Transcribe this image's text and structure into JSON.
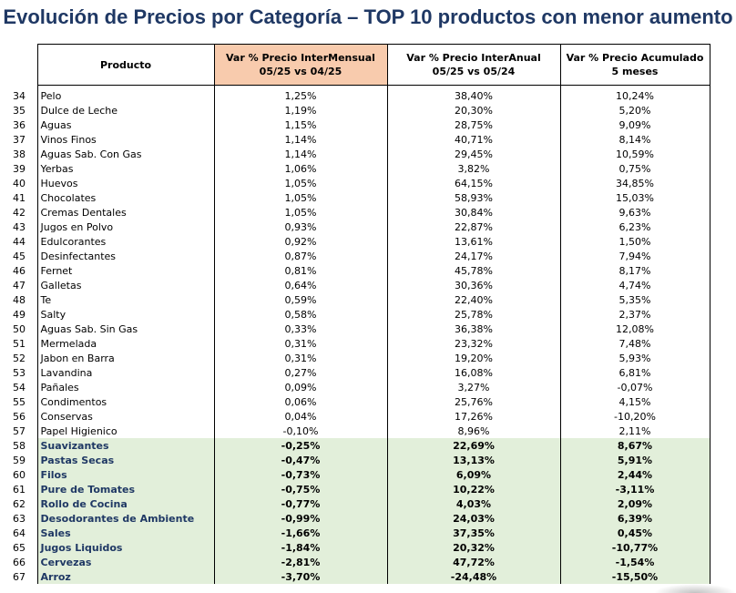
{
  "title": "Evolución de Precios por Categoría – TOP 10 productos con menor aumento",
  "headers": {
    "product": "Producto",
    "col1_line1": "Var % Precio InterMensual",
    "col1_line2": "05/25 vs 04/25",
    "col2_line1": "Var % Precio InterAnual",
    "col2_line2": "05/25 vs 05/24",
    "col3_line1": "Var % Precio Acumulado",
    "col3_line2": "5 meses"
  },
  "colors": {
    "title": "#1f3864",
    "header_highlight": "#f8cbad",
    "top10_highlight": "#e2efda"
  },
  "rows": [
    {
      "n": "34",
      "product": "Pelo",
      "mensual": "1,25%",
      "anual": "38,40%",
      "acum": "10,24%",
      "top": false
    },
    {
      "n": "35",
      "product": "Dulce de Leche",
      "mensual": "1,19%",
      "anual": "20,30%",
      "acum": "5,20%",
      "top": false
    },
    {
      "n": "36",
      "product": "Aguas",
      "mensual": "1,15%",
      "anual": "28,75%",
      "acum": "9,09%",
      "top": false
    },
    {
      "n": "37",
      "product": "Vinos Finos",
      "mensual": "1,14%",
      "anual": "40,71%",
      "acum": "8,14%",
      "top": false
    },
    {
      "n": "38",
      "product": "Aguas Sab. Con Gas",
      "mensual": "1,14%",
      "anual": "29,45%",
      "acum": "10,59%",
      "top": false
    },
    {
      "n": "39",
      "product": "Yerbas",
      "mensual": "1,06%",
      "anual": "3,82%",
      "acum": "0,75%",
      "top": false
    },
    {
      "n": "40",
      "product": "Huevos",
      "mensual": "1,05%",
      "anual": "64,15%",
      "acum": "34,85%",
      "top": false
    },
    {
      "n": "41",
      "product": "Chocolates",
      "mensual": "1,05%",
      "anual": "58,93%",
      "acum": "15,03%",
      "top": false
    },
    {
      "n": "42",
      "product": "Cremas Dentales",
      "mensual": "1,05%",
      "anual": "30,84%",
      "acum": "9,63%",
      "top": false
    },
    {
      "n": "43",
      "product": "Jugos en Polvo",
      "mensual": "0,93%",
      "anual": "22,87%",
      "acum": "6,23%",
      "top": false
    },
    {
      "n": "44",
      "product": "Edulcorantes",
      "mensual": "0,92%",
      "anual": "13,61%",
      "acum": "1,50%",
      "top": false
    },
    {
      "n": "45",
      "product": "Desinfectantes",
      "mensual": "0,87%",
      "anual": "24,17%",
      "acum": "7,94%",
      "top": false
    },
    {
      "n": "46",
      "product": "Fernet",
      "mensual": "0,81%",
      "anual": "45,78%",
      "acum": "8,17%",
      "top": false
    },
    {
      "n": "47",
      "product": "Galletas",
      "mensual": "0,64%",
      "anual": "30,36%",
      "acum": "4,74%",
      "top": false
    },
    {
      "n": "48",
      "product": "Te",
      "mensual": "0,59%",
      "anual": "22,40%",
      "acum": "5,35%",
      "top": false
    },
    {
      "n": "49",
      "product": "Salty",
      "mensual": "0,58%",
      "anual": "25,78%",
      "acum": "2,37%",
      "top": false
    },
    {
      "n": "50",
      "product": "Aguas Sab. Sin Gas",
      "mensual": "0,33%",
      "anual": "36,38%",
      "acum": "12,08%",
      "top": false
    },
    {
      "n": "51",
      "product": "Mermelada",
      "mensual": "0,31%",
      "anual": "23,32%",
      "acum": "7,48%",
      "top": false
    },
    {
      "n": "52",
      "product": "Jabon en Barra",
      "mensual": "0,31%",
      "anual": "19,20%",
      "acum": "5,93%",
      "top": false
    },
    {
      "n": "53",
      "product": "Lavandina",
      "mensual": "0,27%",
      "anual": "16,08%",
      "acum": "6,81%",
      "top": false
    },
    {
      "n": "54",
      "product": "Pañales",
      "mensual": "0,09%",
      "anual": "3,27%",
      "acum": "-0,07%",
      "top": false
    },
    {
      "n": "55",
      "product": "Condimentos",
      "mensual": "0,06%",
      "anual": "25,76%",
      "acum": "4,15%",
      "top": false
    },
    {
      "n": "56",
      "product": "Conservas",
      "mensual": "0,04%",
      "anual": "17,26%",
      "acum": "-10,20%",
      "top": false
    },
    {
      "n": "57",
      "product": "Papel Higienico",
      "mensual": "-0,10%",
      "anual": "8,96%",
      "acum": "2,11%",
      "top": false
    },
    {
      "n": "58",
      "product": "Suavizantes",
      "mensual": "-0,25%",
      "anual": "22,69%",
      "acum": "8,67%",
      "top": true
    },
    {
      "n": "59",
      "product": "Pastas Secas",
      "mensual": "-0,47%",
      "anual": "13,13%",
      "acum": "5,91%",
      "top": true
    },
    {
      "n": "60",
      "product": "Filos",
      "mensual": "-0,73%",
      "anual": "6,09%",
      "acum": "2,44%",
      "top": true
    },
    {
      "n": "61",
      "product": "Pure de Tomates",
      "mensual": "-0,75%",
      "anual": "10,22%",
      "acum": "-3,11%",
      "top": true
    },
    {
      "n": "62",
      "product": "Rollo de Cocina",
      "mensual": "-0,77%",
      "anual": "4,03%",
      "acum": "2,09%",
      "top": true
    },
    {
      "n": "63",
      "product": "Desodorantes de Ambiente",
      "mensual": "-0,99%",
      "anual": "24,03%",
      "acum": "6,39%",
      "top": true
    },
    {
      "n": "64",
      "product": "Sales",
      "mensual": "-1,66%",
      "anual": "37,35%",
      "acum": "0,45%",
      "top": true
    },
    {
      "n": "65",
      "product": "Jugos Liquidos",
      "mensual": "-1,84%",
      "anual": "20,32%",
      "acum": "-10,77%",
      "top": true
    },
    {
      "n": "66",
      "product": "Cervezas",
      "mensual": "-2,81%",
      "anual": "47,72%",
      "acum": "-1,54%",
      "top": true
    },
    {
      "n": "67",
      "product": "Arroz",
      "mensual": "-3,70%",
      "anual": "-24,48%",
      "acum": "-15,50%",
      "top": true
    }
  ]
}
